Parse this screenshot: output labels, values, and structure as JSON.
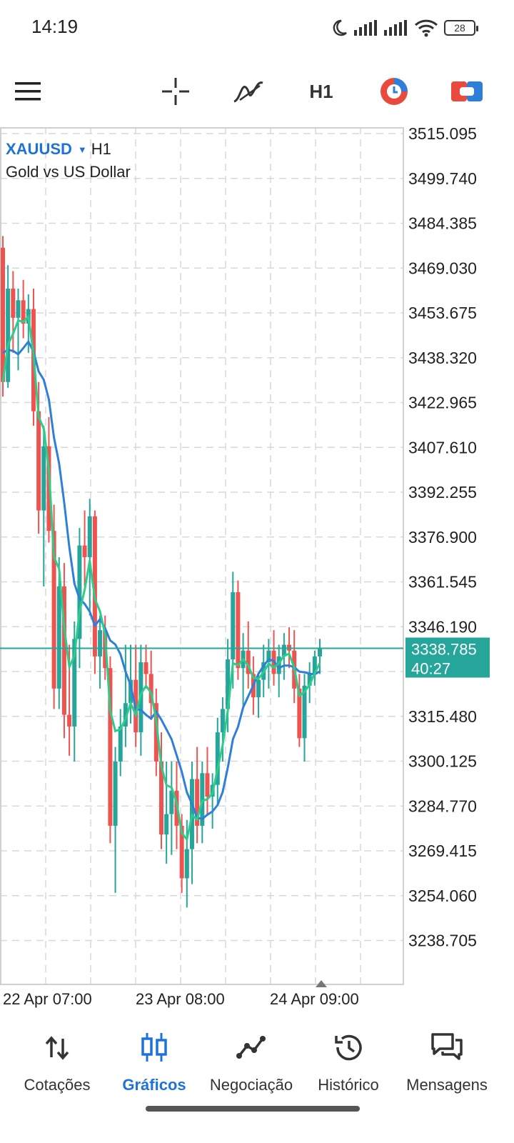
{
  "status_bar": {
    "time": "14:19",
    "battery": "28",
    "icons": [
      "moon-icon",
      "signal-icon",
      "signal-icon",
      "wifi-icon",
      "battery-icon"
    ]
  },
  "toolbar": {
    "menu_icon": "hamburger-icon",
    "crosshair_icon": "crosshair-icon",
    "indicators_icon": "indicators-icon",
    "timeframe": "H1",
    "chart_type_icon": "clock-chart-icon",
    "trade_icon": "toggle-trade-icon"
  },
  "symbol": {
    "name": "XAUUSD",
    "timeframe": "H1",
    "description": "Gold vs US Dollar"
  },
  "chart_data": {
    "type": "candlestick",
    "y_ticks": [
      "3515.095",
      "3499.740",
      "3484.385",
      "3469.030",
      "3453.675",
      "3438.320",
      "3422.965",
      "3407.610",
      "3392.255",
      "3376.900",
      "3361.545",
      "3346.190",
      "3315.480",
      "3300.125",
      "3284.770",
      "3269.415",
      "3254.060",
      "3238.705"
    ],
    "x_ticks": [
      "22 Apr 07:00",
      "23 Apr 08:00",
      "24 Apr 09:00"
    ],
    "current_price": "3338.785",
    "countdown": "40:27",
    "colors": {
      "up": "#26a69a",
      "down": "#ef5350",
      "ma_fast": "#2ecc8a",
      "ma_slow": "#2f7fd9",
      "price_line": "#26a69a",
      "grid": "#d8d8d8"
    },
    "candles": [
      [
        3476,
        3480,
        3425,
        3430
      ],
      [
        3430,
        3470,
        3428,
        3462
      ],
      [
        3462,
        3468,
        3440,
        3452
      ],
      [
        3452,
        3462,
        3434,
        3458
      ],
      [
        3458,
        3465,
        3445,
        3450
      ],
      [
        3450,
        3460,
        3440,
        3455
      ],
      [
        3455,
        3462,
        3415,
        3420
      ],
      [
        3420,
        3430,
        3378,
        3386
      ],
      [
        3386,
        3415,
        3360,
        3408
      ],
      [
        3408,
        3418,
        3375,
        3379
      ],
      [
        3379,
        3388,
        3318,
        3325
      ],
      [
        3325,
        3370,
        3318,
        3360
      ],
      [
        3360,
        3368,
        3308,
        3316
      ],
      [
        3316,
        3340,
        3302,
        3312
      ],
      [
        3312,
        3348,
        3300,
        3342
      ],
      [
        3342,
        3380,
        3332,
        3374
      ],
      [
        3374,
        3386,
        3360,
        3370
      ],
      [
        3370,
        3390,
        3350,
        3384
      ],
      [
        3384,
        3386,
        3330,
        3336
      ],
      [
        3336,
        3350,
        3325,
        3345
      ],
      [
        3345,
        3350,
        3328,
        3332
      ],
      [
        3332,
        3336,
        3272,
        3278
      ],
      [
        3278,
        3305,
        3255,
        3300
      ],
      [
        3300,
        3318,
        3295,
        3312
      ],
      [
        3312,
        3340,
        3305,
        3320
      ],
      [
        3320,
        3340,
        3313,
        3328
      ],
      [
        3328,
        3340,
        3305,
        3310
      ],
      [
        3310,
        3340,
        3302,
        3334
      ],
      [
        3334,
        3340,
        3325,
        3330
      ],
      [
        3330,
        3338,
        3315,
        3320
      ],
      [
        3320,
        3325,
        3295,
        3300
      ],
      [
        3300,
        3310,
        3270,
        3275
      ],
      [
        3275,
        3300,
        3265,
        3282
      ],
      [
        3282,
        3300,
        3268,
        3290
      ],
      [
        3290,
        3300,
        3270,
        3278
      ],
      [
        3278,
        3282,
        3255,
        3260
      ],
      [
        3260,
        3280,
        3250,
        3270
      ],
      [
        3270,
        3300,
        3258,
        3294
      ],
      [
        3294,
        3305,
        3272,
        3278
      ],
      [
        3278,
        3300,
        3272,
        3296
      ],
      [
        3296,
        3305,
        3282,
        3288
      ],
      [
        3288,
        3296,
        3277,
        3292
      ],
      [
        3292,
        3315,
        3285,
        3310
      ],
      [
        3310,
        3322,
        3300,
        3318
      ],
      [
        3318,
        3342,
        3310,
        3335
      ],
      [
        3335,
        3365,
        3325,
        3358
      ],
      [
        3358,
        3362,
        3328,
        3332
      ],
      [
        3332,
        3344,
        3318,
        3338
      ],
      [
        3338,
        3348,
        3325,
        3330
      ],
      [
        3330,
        3336,
        3316,
        3322
      ],
      [
        3322,
        3330,
        3315,
        3328
      ],
      [
        3328,
        3340,
        3322,
        3334
      ],
      [
        3334,
        3342,
        3325,
        3338
      ],
      [
        3338,
        3345,
        3326,
        3330
      ],
      [
        3330,
        3340,
        3322,
        3336
      ],
      [
        3336,
        3344,
        3328,
        3340
      ],
      [
        3340,
        3346,
        3332,
        3338
      ],
      [
        3338,
        3345,
        3320,
        3325
      ],
      [
        3325,
        3330,
        3305,
        3308
      ],
      [
        3308,
        3330,
        3300,
        3326
      ],
      [
        3326,
        3334,
        3320,
        3330
      ],
      [
        3330,
        3338,
        3326,
        3336
      ],
      [
        3336,
        3342,
        3330,
        3339
      ]
    ]
  },
  "bottom_nav": {
    "items": [
      {
        "label": "Cotações",
        "icon": "quotes-arrows-icon",
        "active": false
      },
      {
        "label": "Gráficos",
        "icon": "candlestick-icon",
        "active": true
      },
      {
        "label": "Negociação",
        "icon": "trade-graph-icon",
        "active": false
      },
      {
        "label": "Histórico",
        "icon": "history-icon",
        "active": false
      },
      {
        "label": "Mensagens",
        "icon": "messages-icon",
        "active": false
      }
    ]
  }
}
